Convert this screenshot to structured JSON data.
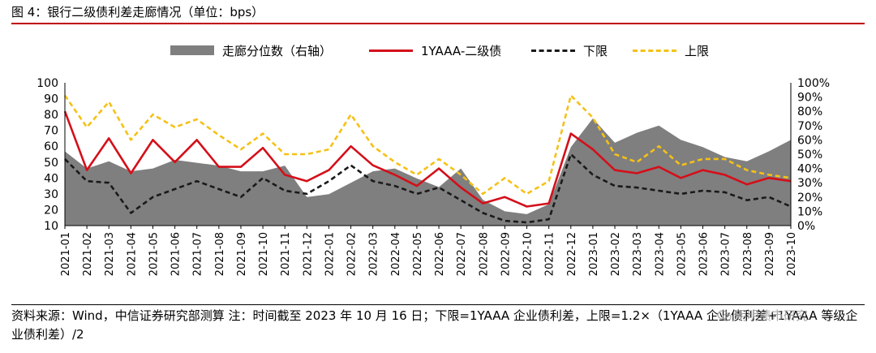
{
  "title": "图 4：银行二级债利差走廊情况（单位：bps）",
  "legend": {
    "area": "走廊分位数（右轴）",
    "red": "1YAAA-二级债",
    "black": "下限",
    "yellow": "上限"
  },
  "note": "资料来源：Wind，中信证券研究部测算 注：时间截至 2023 年 10 月 16 日；下限=1YAAA 企业债利差，上限=1.2×（1YAAA 企业债利差+1YAAA 等级企业债利差）/2",
  "watermark": "明明债市研究",
  "chart_data": {
    "type": "line",
    "x": [
      "2021-01",
      "2021-02",
      "2021-03",
      "2021-04",
      "2021-05",
      "2021-06",
      "2021-07",
      "2021-08",
      "2021-09",
      "2021-10",
      "2021-11",
      "2021-12",
      "2022-01",
      "2022-02",
      "2022-03",
      "2022-04",
      "2022-05",
      "2022-06",
      "2022-07",
      "2022-08",
      "2022-09",
      "2022-10",
      "2022-11",
      "2022-12",
      "2023-01",
      "2023-02",
      "2023-03",
      "2023-04",
      "2023-05",
      "2023-06",
      "2023-07",
      "2023-08",
      "2023-09",
      "2023-10"
    ],
    "y_left": {
      "min": 10,
      "max": 100,
      "ticks": [
        "100",
        "90",
        "80",
        "70",
        "60",
        "50",
        "40",
        "30",
        "20",
        "10"
      ]
    },
    "y_right": {
      "min": 0,
      "max": 100,
      "unit": "%",
      "ticks": [
        "100%",
        "90%",
        "80%",
        "70%",
        "60%",
        "50%",
        "40%",
        "30%",
        "20%",
        "10%",
        "0%"
      ]
    },
    "series": [
      {
        "name": "走廊分位数（右轴）",
        "kind": "area",
        "axis": "right",
        "color": "#7f7f7f",
        "values": [
          52,
          40,
          45,
          38,
          40,
          46,
          44,
          42,
          38,
          38,
          42,
          20,
          22,
          30,
          38,
          40,
          33,
          27,
          40,
          18,
          10,
          8,
          15,
          55,
          75,
          58,
          65,
          70,
          60,
          55,
          48,
          45,
          52,
          60
        ]
      },
      {
        "name": "1YAAA-二级债",
        "kind": "line",
        "axis": "left",
        "color": "#d40f1a",
        "values": [
          82,
          45,
          65,
          43,
          64,
          50,
          64,
          47,
          47,
          59,
          42,
          38,
          45,
          60,
          48,
          42,
          35,
          46,
          34,
          24,
          28,
          22,
          24,
          68,
          58,
          45,
          43,
          47,
          40,
          45,
          42,
          36,
          40,
          38
        ]
      },
      {
        "name": "下限",
        "kind": "line",
        "axis": "left",
        "color": "#1a1a1a",
        "values": [
          52,
          38,
          37,
          18,
          28,
          33,
          38,
          33,
          28,
          40,
          32,
          30,
          38,
          48,
          38,
          35,
          30,
          34,
          26,
          18,
          13,
          12,
          14,
          55,
          42,
          35,
          34,
          32,
          30,
          32,
          31,
          26,
          28,
          22
        ]
      },
      {
        "name": "上限",
        "kind": "line",
        "axis": "left",
        "color": "#f5c116",
        "values": [
          92,
          72,
          88,
          64,
          80,
          72,
          77,
          67,
          58,
          68,
          55,
          55,
          58,
          80,
          60,
          50,
          42,
          52,
          42,
          30,
          40,
          30,
          38,
          92,
          78,
          55,
          50,
          60,
          48,
          52,
          52,
          45,
          42,
          40
        ]
      }
    ]
  }
}
